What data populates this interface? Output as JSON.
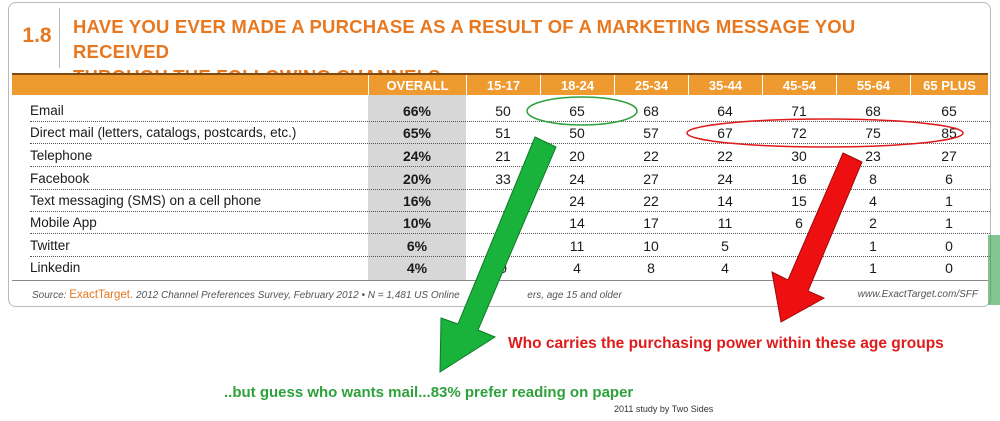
{
  "section_number": "1.8",
  "title_line1": "HAVE YOU EVER MADE A PURCHASE AS A RESULT OF A MARKETING MESSAGE YOU RECEIVED",
  "title_line2": "THROUGH THE FOLLOWING CHANNELS",
  "columns": [
    "OVERALL",
    "15-17",
    "18-24",
    "25-34",
    "35-44",
    "45-54",
    "55-64",
    "65 PLUS"
  ],
  "rows": [
    {
      "label": "Email",
      "overall": "66%",
      "values": [
        "50",
        "65",
        "68",
        "64",
        "71",
        "68",
        "65"
      ]
    },
    {
      "label": "Direct mail (letters, catalogs, postcards, etc.)",
      "overall": "65%",
      "values": [
        "51",
        "50",
        "57",
        "67",
        "72",
        "75",
        "85"
      ]
    },
    {
      "label": "Telephone",
      "overall": "24%",
      "values": [
        "21",
        "20",
        "22",
        "22",
        "30",
        "23",
        "27"
      ]
    },
    {
      "label": "Facebook",
      "overall": "20%",
      "values": [
        "33",
        "24",
        "27",
        "24",
        "16",
        "8",
        "6"
      ]
    },
    {
      "label": "Text messaging (SMS) on a cell phone",
      "overall": "16%",
      "values": [
        "",
        "24",
        "22",
        "14",
        "15",
        "4",
        "1"
      ]
    },
    {
      "label": "Mobile App",
      "overall": "10%",
      "values": [
        "",
        "14",
        "17",
        "11",
        "6",
        "2",
        "1"
      ]
    },
    {
      "label": "Twitter",
      "overall": "6%",
      "values": [
        "",
        "11",
        "10",
        "5",
        "",
        "1",
        "0"
      ]
    },
    {
      "label": "Linkedin",
      "overall": "4%",
      "values": [
        "0",
        "4",
        "8",
        "4",
        "",
        "1",
        "0"
      ]
    }
  ],
  "source_prefix": "Source:",
  "source_brand": "ExactTarget.",
  "source_text": "2012 Channel Preferences Survey, February 2012  •  N = 1,481  US Online",
  "source_text2": "ers, age 15 and older",
  "source_url": "www.ExactTarget.com/SFF",
  "red_caption": "Who carries the purchasing power within these age groups",
  "green_caption": "..but guess who wants mail...83% prefer reading on paper",
  "small_caption": "2011 study by Two Sides",
  "colors": {
    "orange": "#e8781f",
    "header": "#ee9a2e",
    "red": "#e01b1b",
    "green": "#2fa13c"
  }
}
